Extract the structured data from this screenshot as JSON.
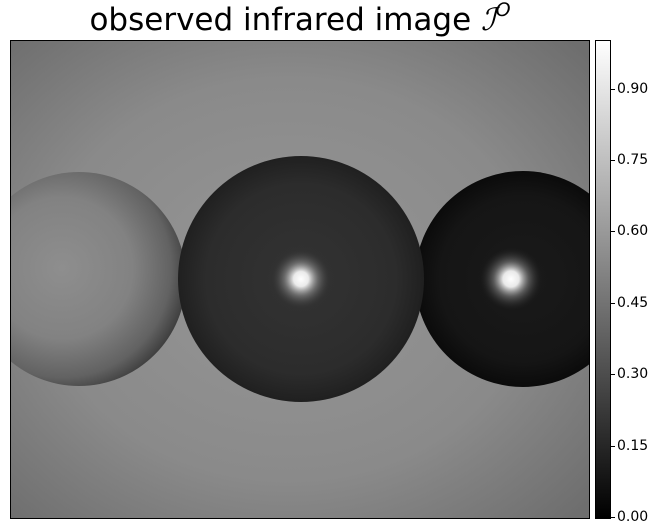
{
  "title": {
    "text": "observed infrared image",
    "symbol": "ℐ",
    "superscript": "O"
  },
  "image": {
    "description_colormap": "grayscale",
    "background_tone": "#8a8a8a",
    "spheres": [
      {
        "name": "left-sphere",
        "tone": "bright"
      },
      {
        "name": "middle-sphere",
        "tone": "dark",
        "hotspot": true
      },
      {
        "name": "right-sphere",
        "tone": "darkest",
        "hotspot": true
      }
    ]
  },
  "colorbar": {
    "min": 0.0,
    "max": 1.0,
    "ticks": [
      {
        "value": 0.0,
        "label": "0.00"
      },
      {
        "value": 0.15,
        "label": "0.15"
      },
      {
        "value": 0.3,
        "label": "0.30"
      },
      {
        "value": 0.45,
        "label": "0.45"
      },
      {
        "value": 0.6,
        "label": "0.60"
      },
      {
        "value": 0.75,
        "label": "0.75"
      },
      {
        "value": 0.9,
        "label": "0.90"
      }
    ]
  }
}
